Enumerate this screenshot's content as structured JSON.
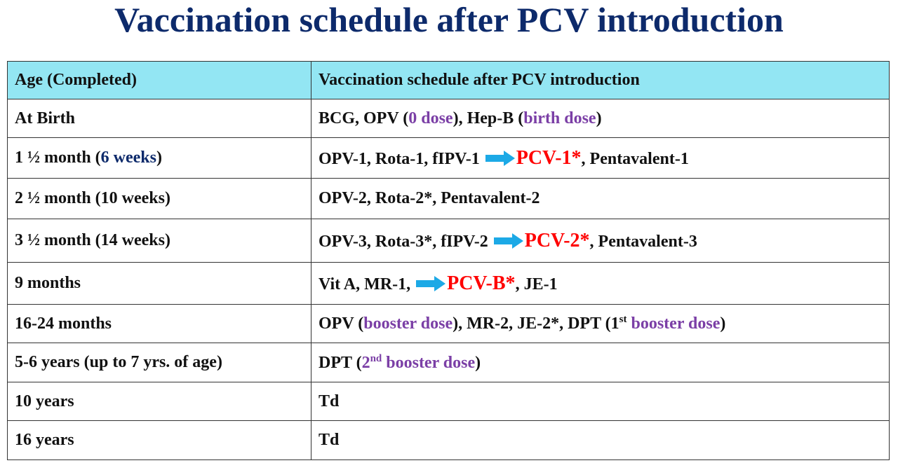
{
  "title": "Vaccination schedule after PCV introduction",
  "table": {
    "header": [
      "Age (Completed)",
      "Vaccination schedule after PCV introduction"
    ],
    "rows": [
      [
        [
          "At Birth"
        ],
        [
          "BCG, OPV (",
          "0 dose",
          "), Hep-B (",
          "birth dose",
          ")"
        ]
      ],
      [
        [
          "1 ½ month (",
          "6 weeks",
          ")"
        ],
        [
          "OPV-1, Rota-1, fIPV-1",
          "PCV-1*",
          ", Pentavalent-1"
        ]
      ],
      [
        [
          "2 ½ month (10 weeks)"
        ],
        [
          "OPV-2, Rota-2*, Pentavalent-2"
        ]
      ],
      [
        [
          "3 ½ month (14 weeks)"
        ],
        [
          "OPV-3, Rota-3*, fIPV-2",
          "PCV-2*",
          ", Pentavalent-3"
        ]
      ],
      [
        [
          "9 months"
        ],
        [
          "Vit A, MR-1,",
          "PCV-B*",
          ", JE-1"
        ]
      ],
      [
        [
          "16-24 months"
        ],
        [
          "OPV (",
          "booster dose",
          "), MR-2, JE-2*, DPT (1",
          "st",
          " booster dose",
          ")"
        ]
      ],
      [
        [
          "5-6 years (up to 7 yrs. of age)"
        ],
        [
          "DPT (",
          "2",
          "nd",
          " booster dose",
          ")"
        ]
      ],
      [
        [
          "10 years"
        ],
        [
          "Td"
        ]
      ],
      [
        [
          "16 years"
        ],
        [
          "Td"
        ]
      ]
    ]
  }
}
